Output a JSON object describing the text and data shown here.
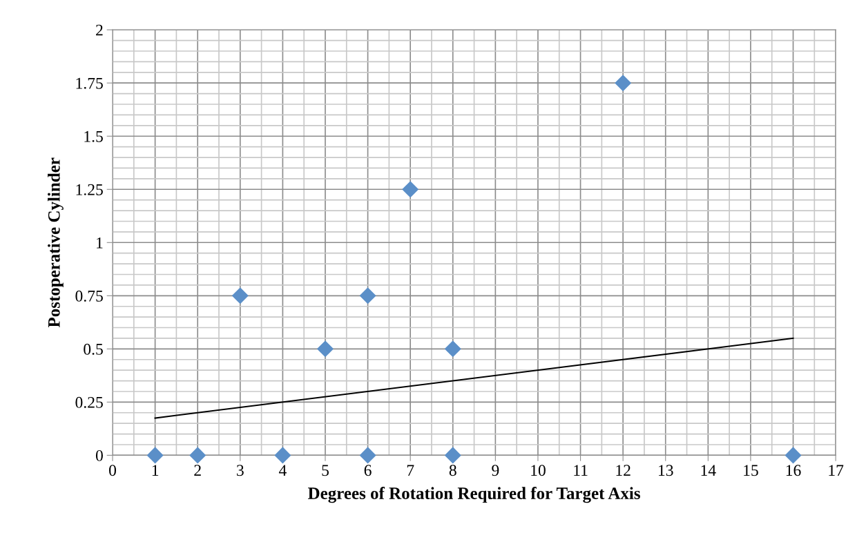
{
  "chart_data": {
    "type": "scatter",
    "xlabel": "Degrees of Rotation Required for Target Axis",
    "ylabel": "Postoperative Cylinder",
    "series": [
      {
        "color": "#5b8fc8",
        "marker": "diamond",
        "x": [
          1,
          2,
          3,
          4,
          5,
          6,
          6,
          7,
          8,
          8,
          12,
          16
        ],
        "values": [
          0,
          0,
          0.75,
          0,
          0.5,
          0.75,
          0,
          1.25,
          0.5,
          0,
          1.75,
          0
        ]
      },
      {
        "type": "line",
        "color": "#000000",
        "marker": "none",
        "line_style": "solid",
        "x": [
          1,
          16
        ],
        "values": [
          0.175,
          0.55
        ]
      }
    ],
    "xlim": [
      0,
      17
    ],
    "xticks": [
      0,
      1,
      2,
      3,
      4,
      5,
      6,
      7,
      8,
      9,
      10,
      11,
      12,
      13,
      14,
      15,
      16,
      17
    ],
    "ylim": [
      0,
      2
    ],
    "yticks": [
      0,
      {
        "value": 0.25,
        "label": "0.25"
      },
      {
        "value": 0.5,
        "label": "0.5"
      },
      {
        "value": 0.75,
        "label": "0.75"
      },
      1,
      {
        "value": 1.25,
        "label": "1.25"
      },
      {
        "value": 1.5,
        "label": "1.5"
      },
      {
        "value": 1.75,
        "label": "1.75"
      },
      2
    ],
    "grid": true,
    "legend": false
  }
}
